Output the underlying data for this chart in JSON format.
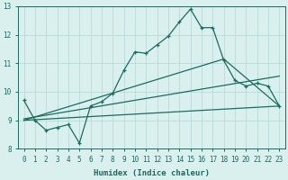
{
  "bg_color": "#daf0ee",
  "grid_color": "#b0d8d4",
  "line_color": "#1a6b60",
  "xlabel": "Humidex (Indice chaleur)",
  "xlim": [
    -0.5,
    23.5
  ],
  "ylim": [
    8,
    13
  ],
  "yticks": [
    8,
    9,
    10,
    11,
    12,
    13
  ],
  "xticks": [
    0,
    1,
    2,
    3,
    4,
    5,
    6,
    7,
    8,
    9,
    10,
    11,
    12,
    13,
    14,
    15,
    16,
    17,
    18,
    19,
    20,
    21,
    22,
    23
  ],
  "curve1_x": [
    0,
    1,
    2,
    3,
    4,
    5,
    6,
    7,
    8,
    9,
    10,
    11,
    12,
    13,
    14,
    15,
    16,
    17,
    18,
    19,
    20,
    21,
    22,
    23
  ],
  "curve1_y": [
    9.7,
    9.0,
    8.65,
    8.75,
    8.85,
    8.2,
    9.5,
    9.65,
    9.95,
    10.75,
    11.4,
    11.35,
    11.65,
    11.95,
    12.45,
    12.9,
    12.25,
    12.25,
    11.1,
    10.4,
    10.2,
    10.3,
    10.2,
    9.5
  ],
  "line1_x": [
    0,
    18
  ],
  "line1_y": [
    9.0,
    11.15
  ],
  "line2_x": [
    0,
    23
  ],
  "line2_y": [
    9.0,
    9.5
  ],
  "line3_x": [
    0,
    23
  ],
  "line3_y": [
    9.05,
    10.55
  ],
  "line4_x": [
    18,
    23
  ],
  "line4_y": [
    11.15,
    9.5
  ]
}
